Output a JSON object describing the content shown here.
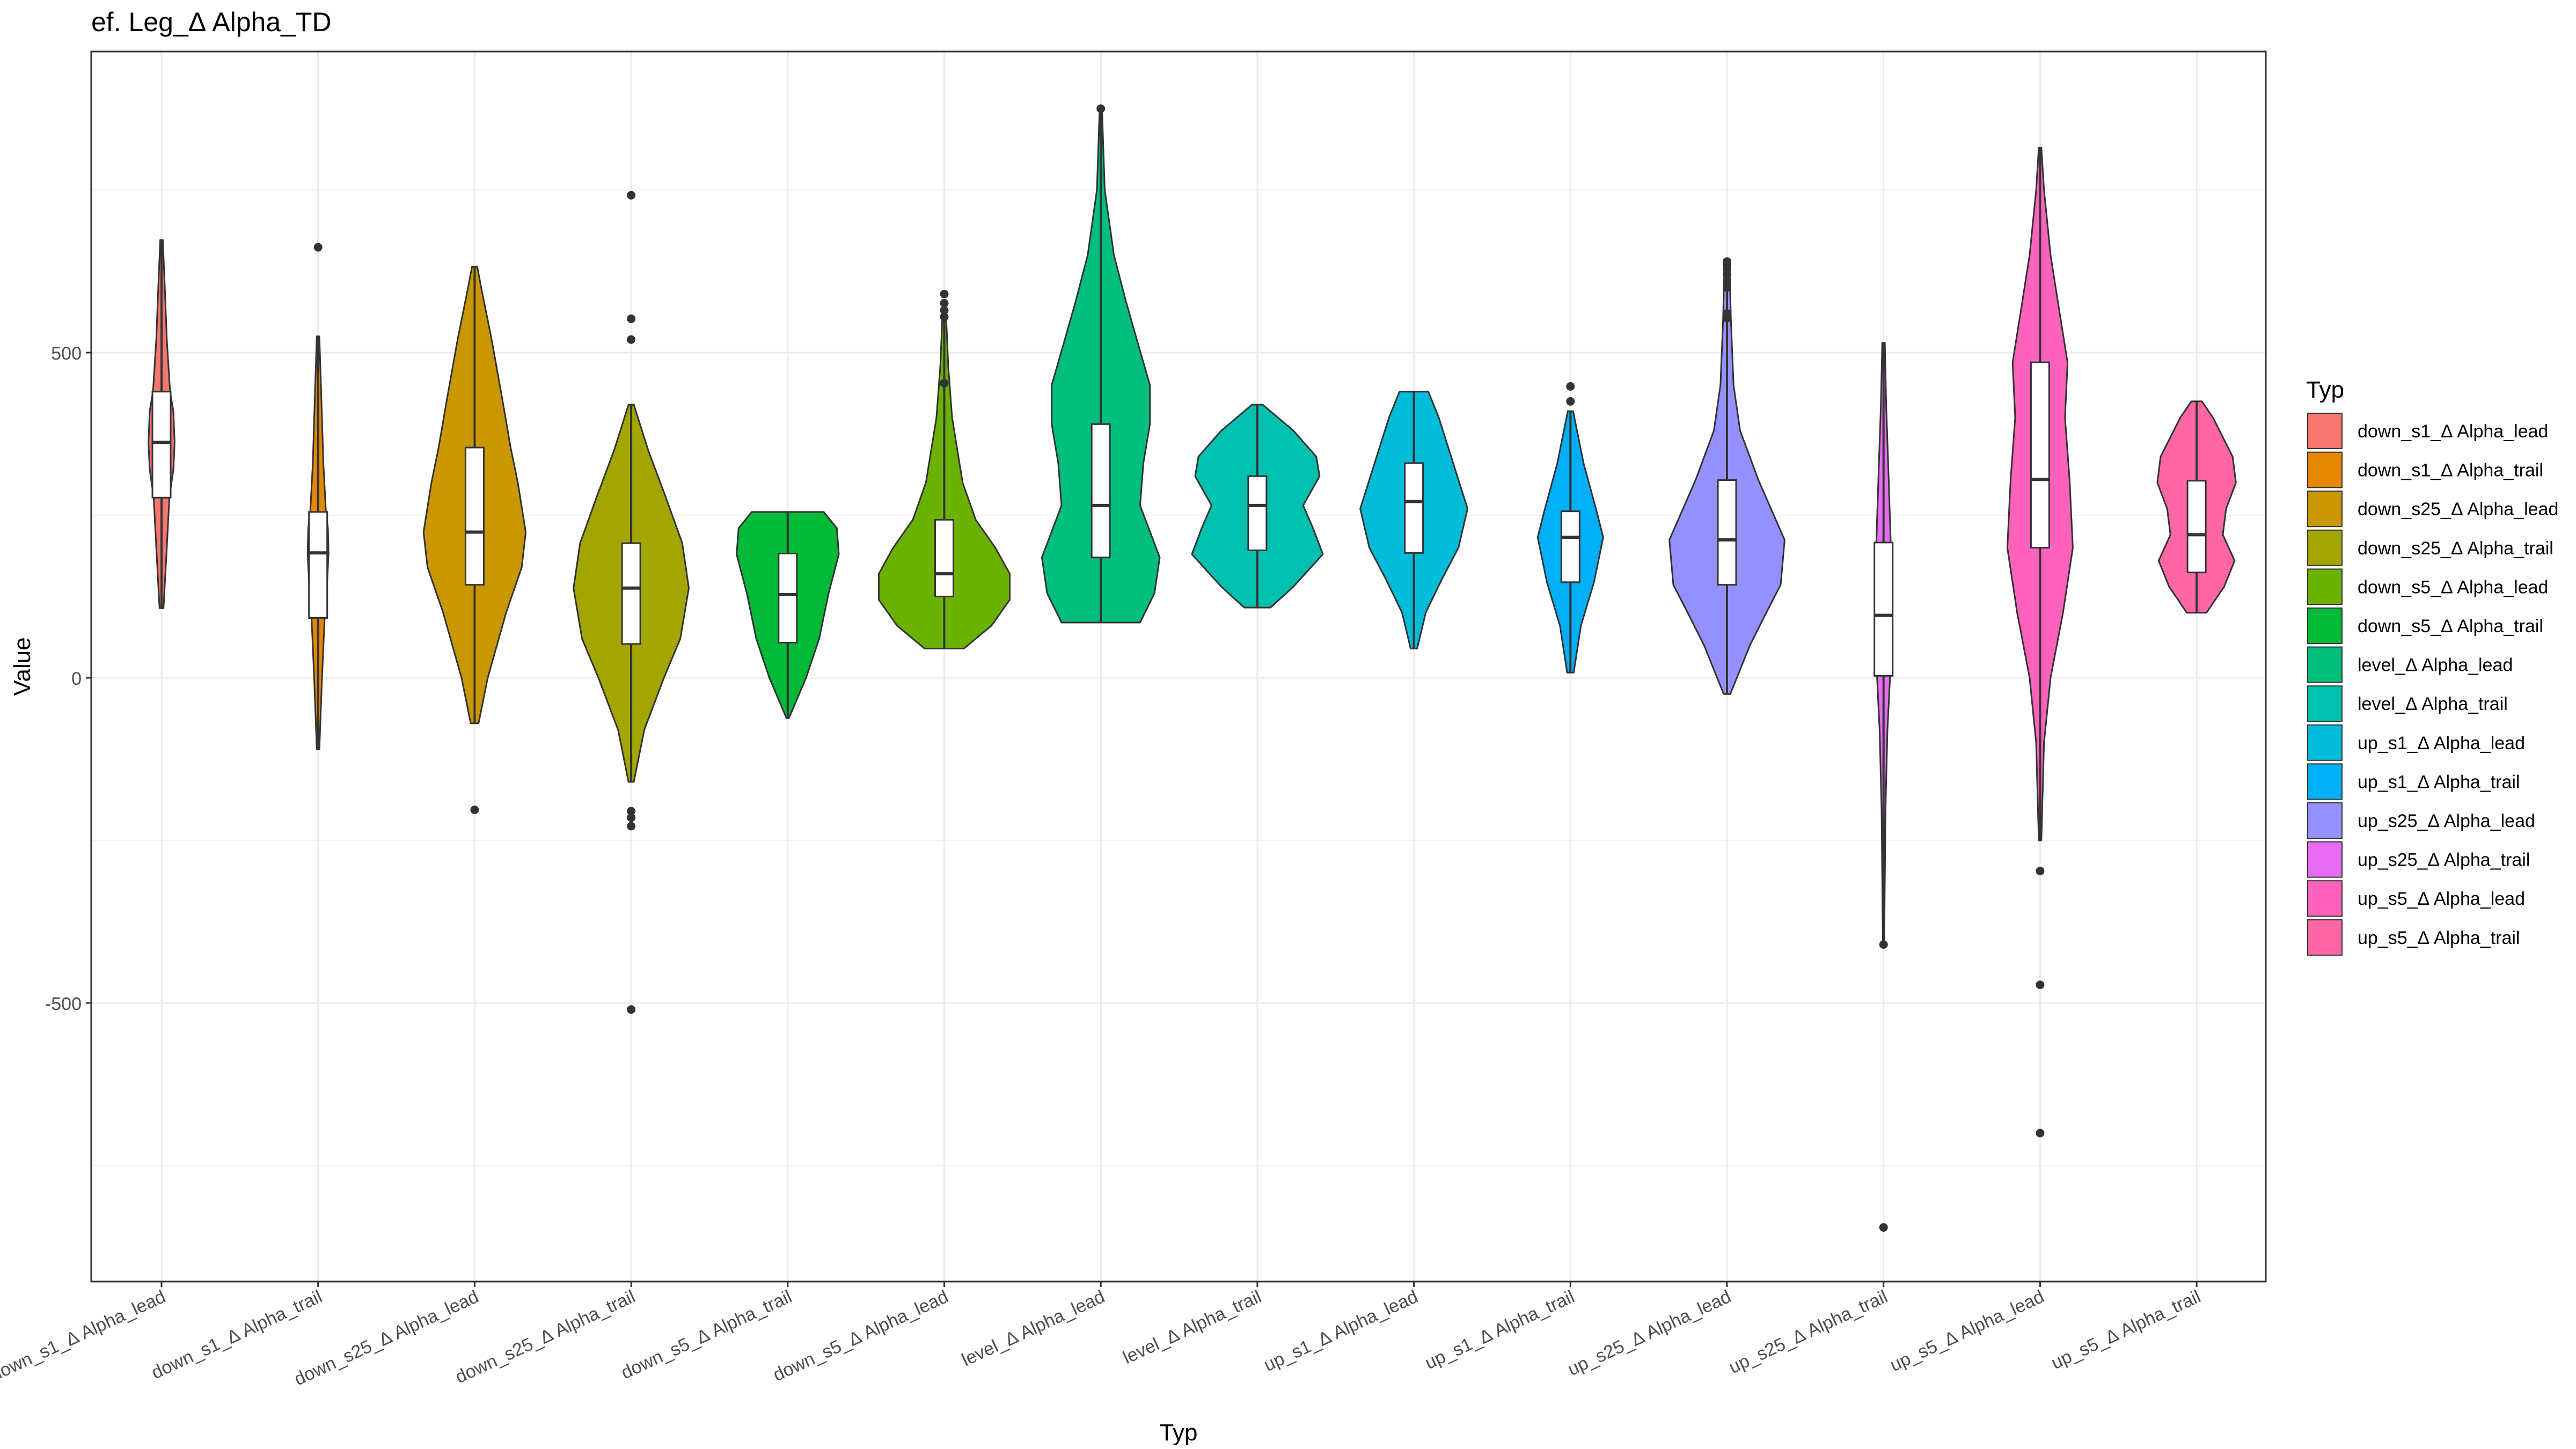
{
  "chart_data": {
    "type": "violin",
    "title": "ef. Leg_Δ Alpha_TD",
    "xlabel": "Typ",
    "ylabel": "Value",
    "ylim": [
      -930,
      970
    ],
    "yticks": [
      -500,
      0,
      500
    ],
    "ytick_labels": [
      "-500",
      "0",
      "500"
    ],
    "grid": true,
    "legend": {
      "title": "Typ",
      "position": "right",
      "entries": [
        {
          "label": "down_s1_Δ Alpha_lead",
          "color": "#F8766D"
        },
        {
          "label": "down_s1_Δ Alpha_trail",
          "color": "#E58700"
        },
        {
          "label": "down_s25_Δ Alpha_lead",
          "color": "#C99800"
        },
        {
          "label": "down_s25_Δ Alpha_trail",
          "color": "#A3A500"
        },
        {
          "label": "down_s5_Δ Alpha_lead",
          "color": "#6BB100"
        },
        {
          "label": "down_s5_Δ Alpha_trail",
          "color": "#00BA38"
        },
        {
          "label": "level_Δ Alpha_lead",
          "color": "#00BF7D"
        },
        {
          "label": "level_Δ Alpha_trail",
          "color": "#00C0AF"
        },
        {
          "label": "up_s1_Δ Alpha_lead",
          "color": "#00BCD8"
        },
        {
          "label": "up_s1_Δ Alpha_trail",
          "color": "#00B0F6"
        },
        {
          "label": "up_s25_Δ Alpha_lead",
          "color": "#9590FF"
        },
        {
          "label": "up_s25_Δ Alpha_trail",
          "color": "#E76BF3"
        },
        {
          "label": "up_s5_Δ Alpha_lead",
          "color": "#FF62BC"
        },
        {
          "label": "up_s5_Δ Alpha_trail",
          "color": "#FF67A4"
        }
      ]
    },
    "series": [
      {
        "category": "down_s1_Δ Alpha_lead",
        "color": "#F8766D",
        "min": 107,
        "max": 673,
        "q1": 277,
        "median": 362,
        "q3": 440,
        "outliers": [],
        "profile": [
          [
            107,
            0.03
          ],
          [
            200,
            0.08
          ],
          [
            277,
            0.12
          ],
          [
            320,
            0.18
          ],
          [
            362,
            0.2
          ],
          [
            410,
            0.18
          ],
          [
            440,
            0.13
          ],
          [
            520,
            0.08
          ],
          [
            600,
            0.05
          ],
          [
            673,
            0.02
          ]
        ]
      },
      {
        "category": "down_s1_Δ Alpha_trail",
        "color": "#E58700",
        "min": -110,
        "max": 525,
        "q1": 92,
        "median": 192,
        "q3": 255,
        "outliers": [
          662
        ],
        "profile": [
          [
            -110,
            0.02
          ],
          [
            0,
            0.06
          ],
          [
            92,
            0.1
          ],
          [
            150,
            0.14
          ],
          [
            192,
            0.16
          ],
          [
            230,
            0.15
          ],
          [
            255,
            0.12
          ],
          [
            330,
            0.08
          ],
          [
            430,
            0.05
          ],
          [
            525,
            0.02
          ]
        ]
      },
      {
        "category": "down_s25_Δ Alpha_lead",
        "color": "#C99800",
        "min": -70,
        "max": 632,
        "q1": 143,
        "median": 224,
        "q3": 354,
        "outliers": [
          -203
        ],
        "profile": [
          [
            -70,
            0.06
          ],
          [
            0,
            0.2
          ],
          [
            100,
            0.48
          ],
          [
            170,
            0.72
          ],
          [
            224,
            0.78
          ],
          [
            300,
            0.66
          ],
          [
            354,
            0.55
          ],
          [
            430,
            0.42
          ],
          [
            520,
            0.26
          ],
          [
            600,
            0.1
          ],
          [
            632,
            0.04
          ]
        ]
      },
      {
        "category": "down_s25_Δ Alpha_trail",
        "color": "#A3A500",
        "min": -160,
        "max": 420,
        "q1": 52,
        "median": 138,
        "q3": 207,
        "outliers": [
          -510,
          -228,
          -215,
          -205,
          520,
          552,
          742
        ],
        "profile": [
          [
            -160,
            0.04
          ],
          [
            -80,
            0.2
          ],
          [
            0,
            0.5
          ],
          [
            60,
            0.75
          ],
          [
            138,
            0.88
          ],
          [
            207,
            0.78
          ],
          [
            280,
            0.52
          ],
          [
            350,
            0.26
          ],
          [
            420,
            0.04
          ]
        ]
      },
      {
        "category": "down_s5_Δ Alpha_trail",
        "color": "#00BA38",
        "min": -62,
        "max": 255,
        "q1": 54,
        "median": 128,
        "q3": 191,
        "outliers": [],
        "profile": [
          [
            -62,
            0.02
          ],
          [
            0,
            0.28
          ],
          [
            60,
            0.48
          ],
          [
            128,
            0.62
          ],
          [
            190,
            0.78
          ],
          [
            230,
            0.75
          ],
          [
            255,
            0.55
          ]
        ]
      },
      {
        "category": "down_s5_Δ Alpha_lead",
        "color": "#6BB100",
        "min": 45,
        "max": 552,
        "q1": 125,
        "median": 160,
        "q3": 243,
        "outliers": [
          453,
          555,
          565,
          576,
          590
        ],
        "profile": [
          [
            45,
            0.3
          ],
          [
            80,
            0.72
          ],
          [
            120,
            1.0
          ],
          [
            160,
            1.0
          ],
          [
            200,
            0.78
          ],
          [
            243,
            0.48
          ],
          [
            300,
            0.28
          ],
          [
            400,
            0.12
          ],
          [
            480,
            0.06
          ],
          [
            552,
            0.03
          ]
        ]
      },
      {
        "category": "level_Δ Alpha_lead",
        "color": "#00BF7D",
        "min": 85,
        "max": 870,
        "q1": 185,
        "median": 265,
        "q3": 390,
        "outliers": [
          875
        ],
        "profile": [
          [
            85,
            0.6
          ],
          [
            130,
            0.82
          ],
          [
            185,
            0.9
          ],
          [
            265,
            0.6
          ],
          [
            330,
            0.65
          ],
          [
            390,
            0.75
          ],
          [
            450,
            0.75
          ],
          [
            520,
            0.55
          ],
          [
            580,
            0.38
          ],
          [
            650,
            0.2
          ],
          [
            750,
            0.06
          ],
          [
            870,
            0.02
          ]
        ]
      },
      {
        "category": "level_Δ Alpha_trail",
        "color": "#00C0AF",
        "min": 108,
        "max": 420,
        "q1": 196,
        "median": 265,
        "q3": 310,
        "outliers": [],
        "profile": [
          [
            108,
            0.2
          ],
          [
            140,
            0.55
          ],
          [
            190,
            1.0
          ],
          [
            230,
            0.85
          ],
          [
            265,
            0.7
          ],
          [
            310,
            0.95
          ],
          [
            340,
            0.9
          ],
          [
            380,
            0.55
          ],
          [
            420,
            0.08
          ]
        ]
      },
      {
        "category": "up_s1_Δ Alpha_lead",
        "color": "#00BCD8",
        "min": 45,
        "max": 440,
        "q1": 192,
        "median": 271,
        "q3": 330,
        "outliers": [],
        "profile": [
          [
            45,
            0.05
          ],
          [
            100,
            0.18
          ],
          [
            150,
            0.42
          ],
          [
            200,
            0.68
          ],
          [
            260,
            0.82
          ],
          [
            330,
            0.6
          ],
          [
            400,
            0.38
          ],
          [
            440,
            0.22
          ]
        ]
      },
      {
        "category": "up_s1_Δ Alpha_trail",
        "color": "#00B0F6",
        "min": 8,
        "max": 410,
        "q1": 147,
        "median": 216,
        "q3": 256,
        "outliers": [
          425,
          448
        ],
        "profile": [
          [
            8,
            0.05
          ],
          [
            80,
            0.16
          ],
          [
            147,
            0.36
          ],
          [
            216,
            0.5
          ],
          [
            256,
            0.4
          ],
          [
            330,
            0.2
          ],
          [
            410,
            0.04
          ]
        ]
      },
      {
        "category": "up_s25_Δ Alpha_lead",
        "color": "#9590FF",
        "min": -25,
        "max": 630,
        "q1": 143,
        "median": 212,
        "q3": 304,
        "outliers": [
          553,
          560,
          600,
          610,
          620,
          628,
          635,
          640
        ],
        "profile": [
          [
            -25,
            0.05
          ],
          [
            50,
            0.35
          ],
          [
            100,
            0.6
          ],
          [
            143,
            0.82
          ],
          [
            212,
            0.88
          ],
          [
            304,
            0.48
          ],
          [
            380,
            0.2
          ],
          [
            450,
            0.1
          ],
          [
            550,
            0.06
          ],
          [
            630,
            0.04
          ]
        ]
      },
      {
        "category": "up_s25_Δ Alpha_trail",
        "color": "#E76BF3",
        "min": -410,
        "max": 515,
        "q1": 3,
        "median": 96,
        "q3": 208,
        "outliers": [
          -845,
          -410
        ],
        "profile": [
          [
            -410,
            0.01
          ],
          [
            -200,
            0.03
          ],
          [
            -80,
            0.06
          ],
          [
            3,
            0.1
          ],
          [
            96,
            0.12
          ],
          [
            208,
            0.11
          ],
          [
            300,
            0.08
          ],
          [
            420,
            0.04
          ],
          [
            515,
            0.02
          ]
        ]
      },
      {
        "category": "up_s5_Δ Alpha_lead",
        "color": "#FF62BC",
        "min": -250,
        "max": 815,
        "q1": 200,
        "median": 305,
        "q3": 485,
        "outliers": [
          -700,
          -472,
          -297
        ],
        "profile": [
          [
            -250,
            0.02
          ],
          [
            -100,
            0.06
          ],
          [
            0,
            0.16
          ],
          [
            100,
            0.35
          ],
          [
            200,
            0.5
          ],
          [
            305,
            0.45
          ],
          [
            400,
            0.38
          ],
          [
            485,
            0.42
          ],
          [
            560,
            0.3
          ],
          [
            650,
            0.16
          ],
          [
            750,
            0.06
          ],
          [
            815,
            0.02
          ]
        ]
      },
      {
        "category": "up_s5_Δ Alpha_trail",
        "color": "#FF67A4",
        "min": 100,
        "max": 425,
        "q1": 162,
        "median": 220,
        "q3": 303,
        "outliers": [],
        "profile": [
          [
            100,
            0.15
          ],
          [
            140,
            0.42
          ],
          [
            180,
            0.58
          ],
          [
            220,
            0.4
          ],
          [
            260,
            0.45
          ],
          [
            300,
            0.6
          ],
          [
            340,
            0.55
          ],
          [
            400,
            0.25
          ],
          [
            425,
            0.08
          ]
        ]
      }
    ]
  }
}
